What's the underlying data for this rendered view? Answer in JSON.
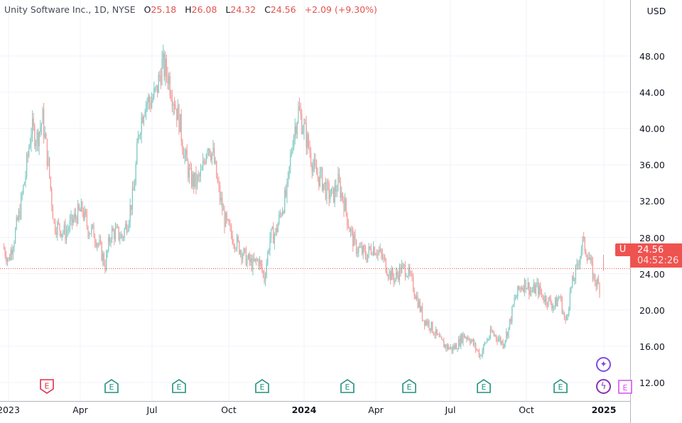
{
  "header": {
    "title": "Unity Software Inc., 1D, NYSE",
    "open_label": "O",
    "open": "25.18",
    "high_label": "H",
    "high": "26.08",
    "low_label": "L",
    "low": "24.32",
    "close_label": "C",
    "close": "24.56",
    "change": "+2.09 (+9.30%)"
  },
  "currency": "USD",
  "last_price": {
    "symbol": "U",
    "price": "24.56",
    "countdown": "04:52:26"
  },
  "colors": {
    "up": "#26a69a",
    "down": "#ef5350",
    "grid": "#f0f3fa",
    "axis": "#b2b5be",
    "earnings_green": "#22907e",
    "earnings_red": "#e0304a",
    "earnings_pink": "#d64ff0",
    "purple": "#7b4de0"
  },
  "events": {
    "earnings_label": "E",
    "star_icon": "sparkle-icon",
    "bolt_icon": "lightning-icon"
  },
  "chart_data": {
    "type": "candlestick",
    "title": "Unity Software Inc., 1D, NYSE",
    "ylabel": "USD",
    "ylim": [
      10.5,
      52
    ],
    "y_ticks": [
      "12.00",
      "16.00",
      "20.00",
      "24.00",
      "28.00",
      "32.00",
      "36.00",
      "40.00",
      "44.00",
      "48.00"
    ],
    "x_ticks": [
      "2023",
      "Apr",
      "Jul",
      "Oct",
      "2024",
      "Apr",
      "Jul",
      "Oct",
      "2025"
    ],
    "weekly_close_approx_start_week": -1,
    "weekly_close_approx": [
      27,
      25.5,
      28,
      31,
      35,
      40,
      39,
      41,
      36,
      29.5,
      29,
      28.5,
      29.5,
      30.5,
      31,
      29,
      28.5,
      27,
      25,
      28.5,
      28.5,
      28,
      30,
      33,
      40,
      43,
      43,
      44,
      47,
      46,
      43.5,
      41,
      37,
      34.5,
      34,
      35,
      38.5,
      37,
      33,
      30,
      28.5,
      27.5,
      26.5,
      25.5,
      25,
      25.5,
      23.5,
      28,
      28.5,
      31,
      33,
      39,
      42,
      40,
      37.5,
      35,
      34.5,
      33,
      32.5,
      34,
      32,
      29,
      27,
      26.5,
      26,
      27,
      26.5,
      25.5,
      24,
      23.5,
      24.5,
      24.5,
      23,
      21,
      19,
      18.5,
      17.5,
      16.5,
      16,
      15.7,
      16.2,
      17.2,
      17,
      16,
      15,
      16.5,
      17.5,
      17,
      16.3,
      18,
      21,
      22.5,
      23,
      22,
      22.5,
      21.5,
      21,
      20.5,
      21.5,
      18.5,
      22.5,
      24.5,
      27.5,
      26,
      23.5,
      22.5
    ],
    "last_candle": {
      "open": 25.18,
      "high": 26.08,
      "low": 24.32,
      "close": 24.56
    },
    "earnings_events": [
      {
        "date": "2023-Feb",
        "result": "miss"
      },
      {
        "date": "2023-May",
        "result": "beat"
      },
      {
        "date": "2023-Aug",
        "result": "beat"
      },
      {
        "date": "2023-Nov",
        "result": "beat"
      },
      {
        "date": "2024-Feb",
        "result": "beat"
      },
      {
        "date": "2024-May",
        "result": "beat"
      },
      {
        "date": "2024-Aug",
        "result": "beat"
      },
      {
        "date": "2024-Nov",
        "result": "beat"
      },
      {
        "date": "2025-Feb",
        "result": "upcoming"
      }
    ]
  }
}
